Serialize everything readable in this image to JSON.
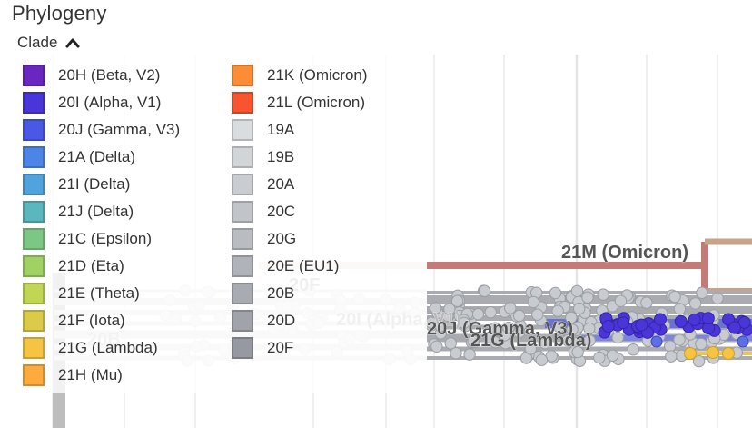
{
  "title": "Phylogeny",
  "legend": {
    "toggle_label": "Clade",
    "col1": [
      {
        "label": "20H (Beta, V2)",
        "color": "#6a26c1"
      },
      {
        "label": "20I (Alpha, V1)",
        "color": "#4a36d8"
      },
      {
        "label": "20J (Gamma, V3)",
        "color": "#4a58e6"
      },
      {
        "label": "21A (Delta)",
        "color": "#4d84e8"
      },
      {
        "label": "21I (Delta)",
        "color": "#51a3dd"
      },
      {
        "label": "21J (Delta)",
        "color": "#5bb6bd"
      },
      {
        "label": "21C (Epsilon)",
        "color": "#7dc785"
      },
      {
        "label": "21D (Eta)",
        "color": "#9fd163"
      },
      {
        "label": "21E (Theta)",
        "color": "#c1d653"
      },
      {
        "label": "21F (Iota)",
        "color": "#dccb48"
      },
      {
        "label": "21G (Lambda)",
        "color": "#f5c443"
      },
      {
        "label": "21H (Mu)",
        "color": "#fdab3c"
      }
    ],
    "col2": [
      {
        "label": "21K (Omicron)",
        "color": "#fc8c36"
      },
      {
        "label": "21L (Omicron)",
        "color": "#f8542f"
      },
      {
        "label": "19A",
        "color": "#dadddf"
      },
      {
        "label": "19B",
        "color": "#d2d5d8"
      },
      {
        "label": "20A",
        "color": "#c9ccd0"
      },
      {
        "label": "20C",
        "color": "#c1c4c9"
      },
      {
        "label": "20G",
        "color": "#b9bcc1"
      },
      {
        "label": "20E (EU1)",
        "color": "#b0b3b9"
      },
      {
        "label": "20B",
        "color": "#a8abb1"
      },
      {
        "label": "20D",
        "color": "#a0a3aa"
      },
      {
        "label": "20F",
        "color": "#9699a2"
      }
    ]
  },
  "tree": {
    "branch_labels": [
      {
        "text": "21M (Omicron)",
        "color": "#555555"
      },
      {
        "text": "20F",
        "color": "#b8b8b8"
      },
      {
        "text": "20I (Alpha, V1)",
        "color": "#b9b9b9"
      },
      {
        "text": "20J (Gamma, V3)",
        "color": "#555555"
      },
      {
        "text": "21G (Lambda)",
        "color": "#555555"
      },
      {
        "text": "20B",
        "color": "#c8c8c8"
      }
    ],
    "colors": {
      "omicron_branch": "#c47a76",
      "omicron_pale": "#f2dede",
      "branch_tan": "#c9a389",
      "tip_grey": "#c8cbd0",
      "tip_grey_stroke": "#9a9da3",
      "tip_blue": "#4a36d8",
      "tip_blue_light": "#5d6ee6",
      "tip_yellow": "#f5c443",
      "gridline": "#e4e4e4",
      "trunk": "#bdbdbd"
    }
  }
}
